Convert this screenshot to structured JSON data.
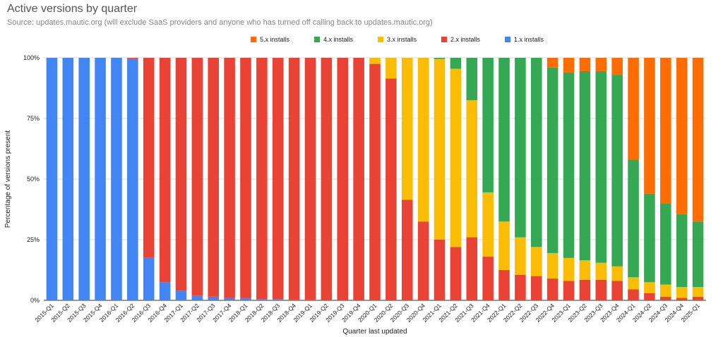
{
  "chart_data": {
    "type": "stacked_bar",
    "title": "Active versions by quarter",
    "subtitle": "Source: updates.mautic.org (will exclude SaaS providers and anyone who has turned off calling back to updates.mautic.org)",
    "x_label": "Quarter last updated",
    "y_label": "Percentage of versions present",
    "categories": [
      "2015-Q1",
      "2015-Q2",
      "2015-Q3",
      "2015-Q4",
      "2016-Q1",
      "2016-Q2",
      "2016-Q3",
      "2016-Q4",
      "2017-Q1",
      "2017-Q2",
      "2017-Q3",
      "2017-Q4",
      "2018-Q1",
      "2018-Q2",
      "2018-Q3",
      "2018-Q4",
      "2019-Q1",
      "2019-Q2",
      "2019-Q3",
      "2019-Q4",
      "2020-Q1",
      "2020-Q2",
      "2020-Q3",
      "2020-Q4",
      "2021-Q1",
      "2021-Q2",
      "2021-Q3",
      "2021-Q4",
      "2022-Q1",
      "2022-Q2",
      "2022-Q3",
      "2022-Q4",
      "2023-Q1",
      "2023-Q2",
      "2023-Q3",
      "2023-Q4",
      "2024-Q1",
      "2024-Q2",
      "2024-Q3",
      "2024-Q4",
      "2025-Q1"
    ],
    "series": [
      {
        "name": "5.x installs",
        "color": "#ff6d01",
        "values": [
          0,
          0,
          0,
          0,
          0,
          0,
          0,
          0,
          0,
          0,
          0,
          0,
          0,
          0,
          0,
          0,
          0,
          0,
          0,
          0,
          0,
          0,
          0,
          0,
          0,
          0,
          0,
          0,
          0,
          0,
          0,
          4,
          6,
          5.5,
          5.5,
          7,
          42,
          56,
          60,
          64.5,
          67.5
        ]
      },
      {
        "name": "4.x installs",
        "color": "#34a853",
        "values": [
          0,
          0,
          0,
          0,
          0,
          0,
          0,
          0,
          0,
          0,
          0,
          0,
          0,
          0,
          0,
          0,
          0,
          0,
          0,
          0,
          0,
          0,
          0,
          0,
          0.5,
          4.5,
          17.5,
          55.5,
          67.5,
          74,
          78,
          76.5,
          76.5,
          78,
          79,
          79,
          48.5,
          36.5,
          33.5,
          30,
          27
        ]
      },
      {
        "name": "3.x installs",
        "color": "#fbbc04",
        "values": [
          0,
          0,
          0,
          0,
          0,
          0,
          0,
          0,
          0,
          0,
          0,
          0,
          0,
          0,
          0,
          0,
          0,
          0,
          0,
          0,
          2.5,
          8.5,
          58.5,
          67.5,
          74.5,
          73.5,
          56.5,
          26.5,
          20,
          15.5,
          12,
          10.5,
          9.5,
          8,
          7,
          6,
          5,
          4.5,
          5,
          4.5,
          4
        ]
      },
      {
        "name": "2.x installs",
        "color": "#ea4335",
        "values": [
          0,
          0,
          0,
          0,
          0,
          0.5,
          82.5,
          92.5,
          96,
          98,
          98.5,
          99,
          99,
          99.5,
          99.5,
          99.7,
          99.7,
          100,
          100,
          100,
          97.5,
          91.5,
          41.5,
          32.5,
          25,
          22,
          26,
          18,
          12.5,
          10.5,
          10,
          9,
          8,
          8.5,
          8.5,
          8,
          4.5,
          3,
          1.5,
          1,
          1.5
        ]
      },
      {
        "name": "1.x installs",
        "color": "#4285f4",
        "values": [
          100,
          100,
          100,
          100,
          100,
          99.5,
          17.5,
          7.5,
          4,
          2,
          1.5,
          1,
          1,
          0.5,
          0.5,
          0.3,
          0.3,
          0,
          0,
          0,
          0,
          0,
          0,
          0,
          0,
          0,
          0,
          0,
          0,
          0,
          0,
          0,
          0,
          0,
          0,
          0,
          0,
          0,
          0,
          0,
          0
        ]
      }
    ],
    "ylim": [
      0,
      100
    ],
    "yticks": [
      {
        "value": 0,
        "label": "0%"
      },
      {
        "value": 25,
        "label": "25%"
      },
      {
        "value": 50,
        "label": "50%"
      },
      {
        "value": 75,
        "label": "75%"
      },
      {
        "value": 100,
        "label": "100%"
      }
    ],
    "grid": true,
    "legend": "top"
  }
}
